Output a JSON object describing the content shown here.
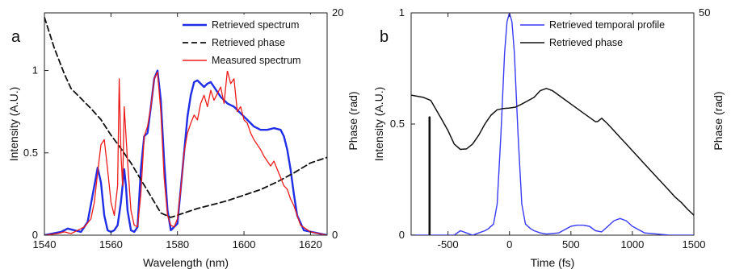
{
  "colors": {
    "blue": "#1f2ee6",
    "red": "#ee1b1b",
    "black": "#111111",
    "lightblue": "#3a3af5"
  },
  "chart_data": [
    {
      "panel": "a",
      "type": "line",
      "title": "",
      "xlabel": "Wavelength (nm)",
      "ylabel": "Intensity (A.U.)",
      "y2label": "Phase (rad)",
      "xlim": [
        1540,
        1625
      ],
      "ylim": [
        0,
        1.35
      ],
      "y2lim": [
        0,
        20
      ],
      "xticks": [
        "1540",
        "1560",
        "1580",
        "1600",
        "1620"
      ],
      "xtick_values": [
        1540,
        1560,
        1580,
        1600,
        1620
      ],
      "yticks": [
        "0",
        "0.5",
        "1"
      ],
      "ytick_values": [
        0,
        0.5,
        1
      ],
      "y2ticks": [
        "0",
        "20"
      ],
      "y2tick_values": [
        0,
        20
      ],
      "legend_position": "top-right",
      "series": [
        {
          "name": "Retrieved spectrum",
          "axis": "left",
          "color": "#1f2ee6",
          "dash": "",
          "width": 2.4,
          "x": [
            1540,
            1545,
            1547,
            1549,
            1551,
            1553,
            1555,
            1556,
            1557,
            1558,
            1559,
            1560,
            1561,
            1562,
            1563,
            1564,
            1564.5,
            1565,
            1566,
            1567,
            1568,
            1569,
            1570,
            1571,
            1572,
            1573,
            1574,
            1575,
            1576,
            1577,
            1578,
            1580,
            1582,
            1583,
            1584,
            1585,
            1586,
            1587,
            1588,
            1589,
            1590,
            1591,
            1593,
            1595,
            1597,
            1599,
            1601,
            1603,
            1605,
            1607,
            1609,
            1611,
            1612,
            1613,
            1614,
            1615,
            1616,
            1618,
            1625
          ],
          "y": [
            0,
            0.02,
            0.04,
            0.03,
            0.02,
            0.08,
            0.3,
            0.41,
            0.32,
            0.12,
            0.03,
            0.02,
            0.03,
            0.06,
            0.2,
            0.4,
            0.3,
            0.15,
            0.03,
            0.02,
            0.05,
            0.4,
            0.6,
            0.62,
            0.78,
            0.95,
            1.0,
            0.82,
            0.45,
            0.15,
            0.03,
            0.07,
            0.5,
            0.72,
            0.85,
            0.93,
            0.94,
            0.92,
            0.9,
            0.92,
            0.93,
            0.9,
            0.84,
            0.8,
            0.78,
            0.74,
            0.7,
            0.66,
            0.64,
            0.64,
            0.65,
            0.64,
            0.6,
            0.52,
            0.4,
            0.25,
            0.12,
            0.03,
            0
          ]
        },
        {
          "name": "Retrieved phase",
          "axis": "right",
          "color": "#111111",
          "dash": "7,4",
          "width": 1.8,
          "x": [
            1540,
            1543,
            1546,
            1548,
            1551,
            1554,
            1557,
            1560,
            1563,
            1566,
            1569,
            1572,
            1575,
            1578,
            1582,
            1586,
            1590,
            1595,
            1600,
            1605,
            1610,
            1615,
            1620,
            1625
          ],
          "y": [
            19.6,
            16.8,
            14.5,
            13.2,
            12.3,
            11.4,
            10.4,
            9.0,
            7.8,
            6.5,
            5.0,
            3.5,
            2.0,
            1.6,
            2.0,
            2.4,
            2.7,
            3.1,
            3.6,
            4.1,
            4.8,
            5.6,
            6.5,
            7.0
          ]
        },
        {
          "name": "Measured spectrum",
          "axis": "left",
          "color": "#ee1b1b",
          "dash": "",
          "width": 1.3,
          "x": [
            1540,
            1544,
            1546,
            1548,
            1550,
            1552,
            1554,
            1555,
            1556,
            1557,
            1558,
            1559,
            1560,
            1561,
            1562,
            1562.5,
            1563,
            1563.5,
            1564,
            1565,
            1566,
            1567,
            1568,
            1569,
            1570,
            1571,
            1572,
            1573,
            1574,
            1575,
            1576,
            1577,
            1578,
            1579,
            1580,
            1581,
            1582,
            1583,
            1584,
            1585,
            1586,
            1587,
            1588,
            1589,
            1590,
            1591,
            1592,
            1593,
            1594,
            1595,
            1596,
            1597,
            1598,
            1599,
            1600,
            1601,
            1602,
            1603,
            1604,
            1605,
            1606,
            1607,
            1608,
            1609,
            1610,
            1611,
            1612,
            1613,
            1614,
            1615,
            1616,
            1617,
            1620,
            1625
          ],
          "y": [
            0,
            0.01,
            0.02,
            0.01,
            0.03,
            0.05,
            0.1,
            0.2,
            0.38,
            0.55,
            0.58,
            0.4,
            0.2,
            0.12,
            0.3,
            0.95,
            0.5,
            0.3,
            0.78,
            0.45,
            0.15,
            0.06,
            0.05,
            0.25,
            0.6,
            0.66,
            0.78,
            0.95,
            0.99,
            0.75,
            0.35,
            0.12,
            0.06,
            0.05,
            0.1,
            0.28,
            0.5,
            0.62,
            0.68,
            0.73,
            0.7,
            0.8,
            0.85,
            0.78,
            0.88,
            0.82,
            0.86,
            0.9,
            0.8,
            1.0,
            0.92,
            0.95,
            0.75,
            0.78,
            0.7,
            0.68,
            0.62,
            0.58,
            0.55,
            0.52,
            0.48,
            0.45,
            0.42,
            0.45,
            0.4,
            0.35,
            0.3,
            0.28,
            0.22,
            0.18,
            0.12,
            0.06,
            0.02,
            0
          ]
        }
      ]
    },
    {
      "panel": "b",
      "type": "line",
      "title": "",
      "xlabel": "Time (fs)",
      "ylabel": "Intensity (A.U.)",
      "y2label": "Phase (rad)",
      "xlim": [
        -800,
        1500
      ],
      "ylim": [
        0,
        1
      ],
      "y2lim": [
        0,
        50
      ],
      "xticks": [
        "-500",
        "0",
        "500",
        "1000",
        "1500"
      ],
      "xtick_values": [
        -500,
        0,
        500,
        1000,
        1500
      ],
      "yticks": [
        "0",
        "0.5",
        "1"
      ],
      "ytick_values": [
        0,
        0.5,
        1
      ],
      "y2ticks": [
        "50"
      ],
      "y2tick_values": [
        50
      ],
      "legend_position": "top-right",
      "series": [
        {
          "name": "Retrieved temporal profile",
          "axis": "left",
          "color": "#3a3af5",
          "dash": "",
          "width": 1.4,
          "x": [
            -800,
            -600,
            -450,
            -400,
            -350,
            -300,
            -250,
            -200,
            -170,
            -130,
            -100,
            -70,
            -40,
            -20,
            0,
            20,
            40,
            70,
            100,
            130,
            170,
            200,
            250,
            300,
            400,
            450,
            500,
            550,
            600,
            650,
            700,
            750,
            800,
            850,
            900,
            950,
            1000,
            1100,
            1200,
            1300,
            1400,
            1500
          ],
          "y": [
            0,
            0,
            0,
            0.02,
            0.01,
            0,
            0.01,
            0.02,
            0.03,
            0.05,
            0.14,
            0.45,
            0.82,
            0.96,
            1.0,
            0.96,
            0.82,
            0.45,
            0.14,
            0.05,
            0.03,
            0.02,
            0.01,
            0.005,
            0.01,
            0.025,
            0.04,
            0.045,
            0.045,
            0.04,
            0.02,
            0.015,
            0.04,
            0.065,
            0.075,
            0.065,
            0.04,
            0.01,
            0.005,
            0,
            0,
            0
          ]
        },
        {
          "name": "Retrieved phase",
          "axis": "right",
          "color": "#111111",
          "dash": "",
          "width": 1.5,
          "x": [
            -800,
            -700,
            -640,
            -600,
            -550,
            -500,
            -450,
            -400,
            -350,
            -300,
            -250,
            -200,
            -180,
            -150,
            -100,
            -50,
            0,
            50,
            100,
            200,
            250,
            300,
            350,
            400,
            450,
            500,
            550,
            600,
            650,
            700,
            720,
            750,
            800,
            850,
            900,
            950,
            1000,
            1050,
            1100,
            1150,
            1200,
            1250,
            1300,
            1350,
            1400,
            1450,
            1500
          ],
          "y": [
            31.5,
            31.0,
            30.3,
            28.4,
            26.0,
            23.5,
            20.5,
            19.3,
            19.4,
            20.5,
            22.5,
            25.0,
            25.8,
            27.0,
            28.2,
            28.5,
            28.6,
            28.8,
            29.5,
            31.0,
            32.5,
            33.0,
            32.5,
            31.5,
            30.5,
            29.5,
            28.5,
            27.5,
            26.5,
            25.5,
            25.6,
            26.3,
            25.0,
            23.5,
            22.0,
            20.5,
            19.0,
            17.5,
            16.0,
            14.5,
            13.0,
            11.5,
            10.0,
            8.5,
            7.3,
            5.8,
            4.5
          ]
        },
        {
          "name": "",
          "axis": "left",
          "color": "#111111",
          "dash": "",
          "width": 2.6,
          "x": [
            -650,
            -650,
            -650
          ],
          "y": [
            0,
            0.28,
            0.53
          ]
        }
      ]
    }
  ],
  "legends": [
    [
      "Retrieved spectrum",
      "Retrieved phase",
      "Measured spectrum"
    ],
    [
      "Retrieved temporal profile",
      "Retrieved phase"
    ]
  ],
  "panel_labels": [
    "a",
    "b"
  ]
}
